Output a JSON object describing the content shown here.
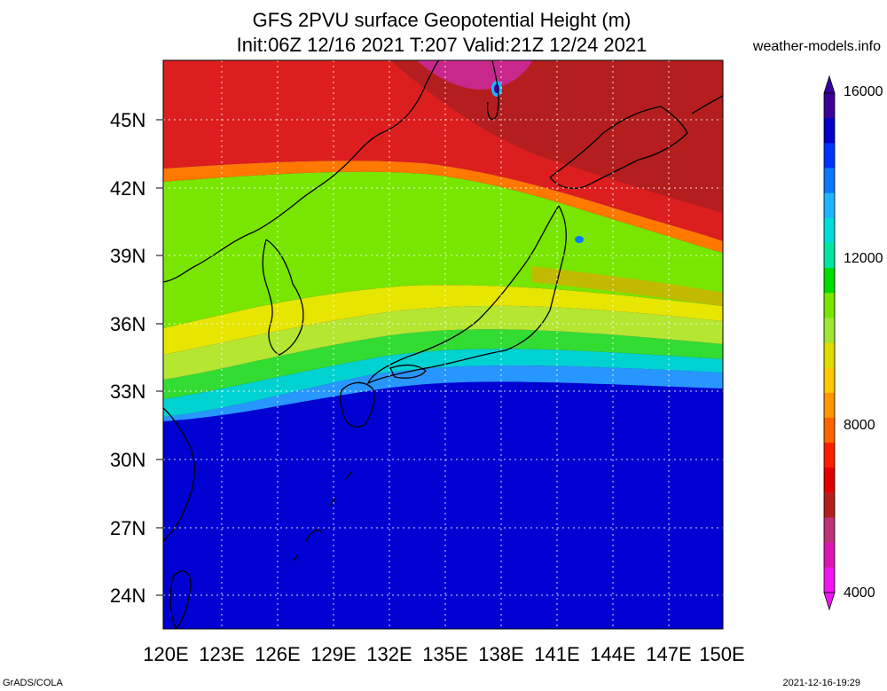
{
  "header": {
    "title_line1": "GFS 2PVU surface Geopotential Height (m)",
    "title_line2": "Init:06Z 12/16 2021 T:207 Valid:21Z 12/24 2021",
    "site": "weather-models.info"
  },
  "footer": {
    "left": "GrADS/COLA",
    "right": "2021-12-16-19:29"
  },
  "map": {
    "lat_labels": [
      "45N",
      "42N",
      "39N",
      "36N",
      "33N",
      "30N",
      "27N",
      "24N"
    ],
    "lon_labels": [
      "120E",
      "123E",
      "126E",
      "129E",
      "132E",
      "135E",
      "138E",
      "141E",
      "144E",
      "147E",
      "150E"
    ]
  },
  "colorbar": {
    "labels": [
      "16000",
      "12000",
      "8000",
      "4000"
    ],
    "colors": [
      "#3c0096",
      "#0000c8",
      "#0032ff",
      "#0a78ff",
      "#1eb4ff",
      "#00dcdc",
      "#00e6a0",
      "#00dc00",
      "#78e600",
      "#a0e632",
      "#dcdc00",
      "#ffc800",
      "#ff9600",
      "#ff6400",
      "#ff1e00",
      "#e10000",
      "#b41e1e",
      "#be3278",
      "#dc14b4",
      "#f014f0"
    ]
  },
  "field_colors": {
    "north_red": "#dc1e1e",
    "dark_red": "#b41e1e",
    "magenta": "#c8288c",
    "orange": "#ff7800",
    "yellow": "#e6e600",
    "yellow_green": "#b4e632",
    "green": "#32dc32",
    "cyan": "#00d2d2",
    "sky": "#2896ff",
    "blue": "#0000d2",
    "indigo": "#3c00a0"
  }
}
